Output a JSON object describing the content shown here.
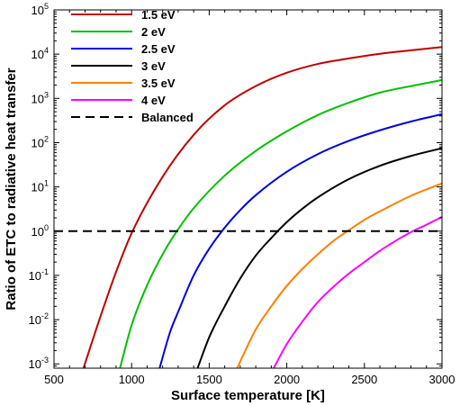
{
  "chart_data": {
    "type": "line",
    "title": "",
    "xlabel": "Surface temperature [K]",
    "ylabel": "Ratio of ETC to radiative heat transfer",
    "x_scale": "linear",
    "y_scale": "log",
    "xlim": [
      500,
      3000
    ],
    "ylim": [
      0.0008,
      100000
    ],
    "grid": false,
    "legend_position": "top-left",
    "x_ticks": [
      500,
      1000,
      1500,
      2000,
      2500,
      3000
    ],
    "x_tick_labels": [
      "500",
      "1000",
      "1500",
      "2000",
      "2500",
      "3000"
    ],
    "y_ticks": [
      0.001,
      0.01,
      0.1,
      1,
      10,
      100,
      1000,
      10000,
      100000
    ],
    "y_tick_labels": [
      {
        "base": "10",
        "exp": "-3"
      },
      {
        "base": "10",
        "exp": "-2"
      },
      {
        "base": "10",
        "exp": "-1"
      },
      {
        "base": "10",
        "exp": "0"
      },
      {
        "base": "10",
        "exp": "1"
      },
      {
        "base": "10",
        "exp": "2"
      },
      {
        "base": "10",
        "exp": "3"
      },
      {
        "base": "10",
        "exp": "4"
      },
      {
        "base": "10",
        "exp": "5"
      }
    ],
    "series": [
      {
        "name": "1.5 eV",
        "color": "#c00000",
        "dash": "solid",
        "x": [
          690,
          800,
          900,
          1000,
          1200,
          1400,
          1600,
          1800,
          2000,
          2200,
          2400,
          2600,
          2800,
          3000
        ],
        "y": [
          0.0008,
          0.012,
          0.12,
          0.9,
          17,
          150,
          700,
          1900,
          3800,
          6000,
          8000,
          10200,
          12200,
          14500
        ]
      },
      {
        "name": "2 eV",
        "color": "#00c000",
        "dash": "solid",
        "x": [
          925,
          1000,
          1100,
          1200,
          1300,
          1400,
          1600,
          1800,
          2000,
          2200,
          2400,
          2600,
          2800,
          3000
        ],
        "y": [
          0.0008,
          0.0075,
          0.06,
          0.3,
          1.1,
          3.3,
          18,
          65,
          180,
          420,
          800,
          1350,
          1900,
          2600
        ]
      },
      {
        "name": "2.5 eV",
        "color": "#0000e0",
        "dash": "solid",
        "x": [
          1180,
          1250,
          1300,
          1400,
          1500,
          1600,
          1700,
          1800,
          2000,
          2200,
          2400,
          2600,
          2800,
          3000
        ],
        "y": [
          0.0008,
          0.0055,
          0.015,
          0.1,
          0.4,
          1.2,
          3,
          6.5,
          22,
          55,
          110,
          190,
          300,
          440
        ]
      },
      {
        "name": "3 eV",
        "color": "#000000",
        "dash": "solid",
        "x": [
          1425,
          1500,
          1600,
          1700,
          1800,
          1900,
          2000,
          2100,
          2200,
          2400,
          2600,
          2800,
          3000
        ],
        "y": [
          0.0008,
          0.004,
          0.02,
          0.085,
          0.28,
          0.7,
          1.6,
          3.2,
          5.8,
          15,
          30,
          50,
          75
        ]
      },
      {
        "name": "3.5 eV",
        "color": "#ff7f00",
        "dash": "solid",
        "x": [
          1680,
          1800,
          1900,
          2000,
          2100,
          2200,
          2300,
          2400,
          2500,
          2600,
          2800,
          3000
        ],
        "y": [
          0.0008,
          0.006,
          0.02,
          0.058,
          0.14,
          0.3,
          0.6,
          1.05,
          1.8,
          2.8,
          6.3,
          12
        ]
      },
      {
        "name": "4 eV",
        "color": "#ff00ff",
        "dash": "solid",
        "x": [
          1915,
          2000,
          2100,
          2200,
          2300,
          2400,
          2500,
          2600,
          2700,
          2800,
          2900,
          3000
        ],
        "y": [
          0.0008,
          0.0028,
          0.009,
          0.025,
          0.055,
          0.11,
          0.2,
          0.36,
          0.6,
          0.95,
          1.4,
          2.1
        ]
      },
      {
        "name": "Balanced",
        "color": "#000000",
        "dash": "dashed",
        "x": [
          500,
          3000
        ],
        "y": [
          1,
          1
        ]
      }
    ]
  }
}
